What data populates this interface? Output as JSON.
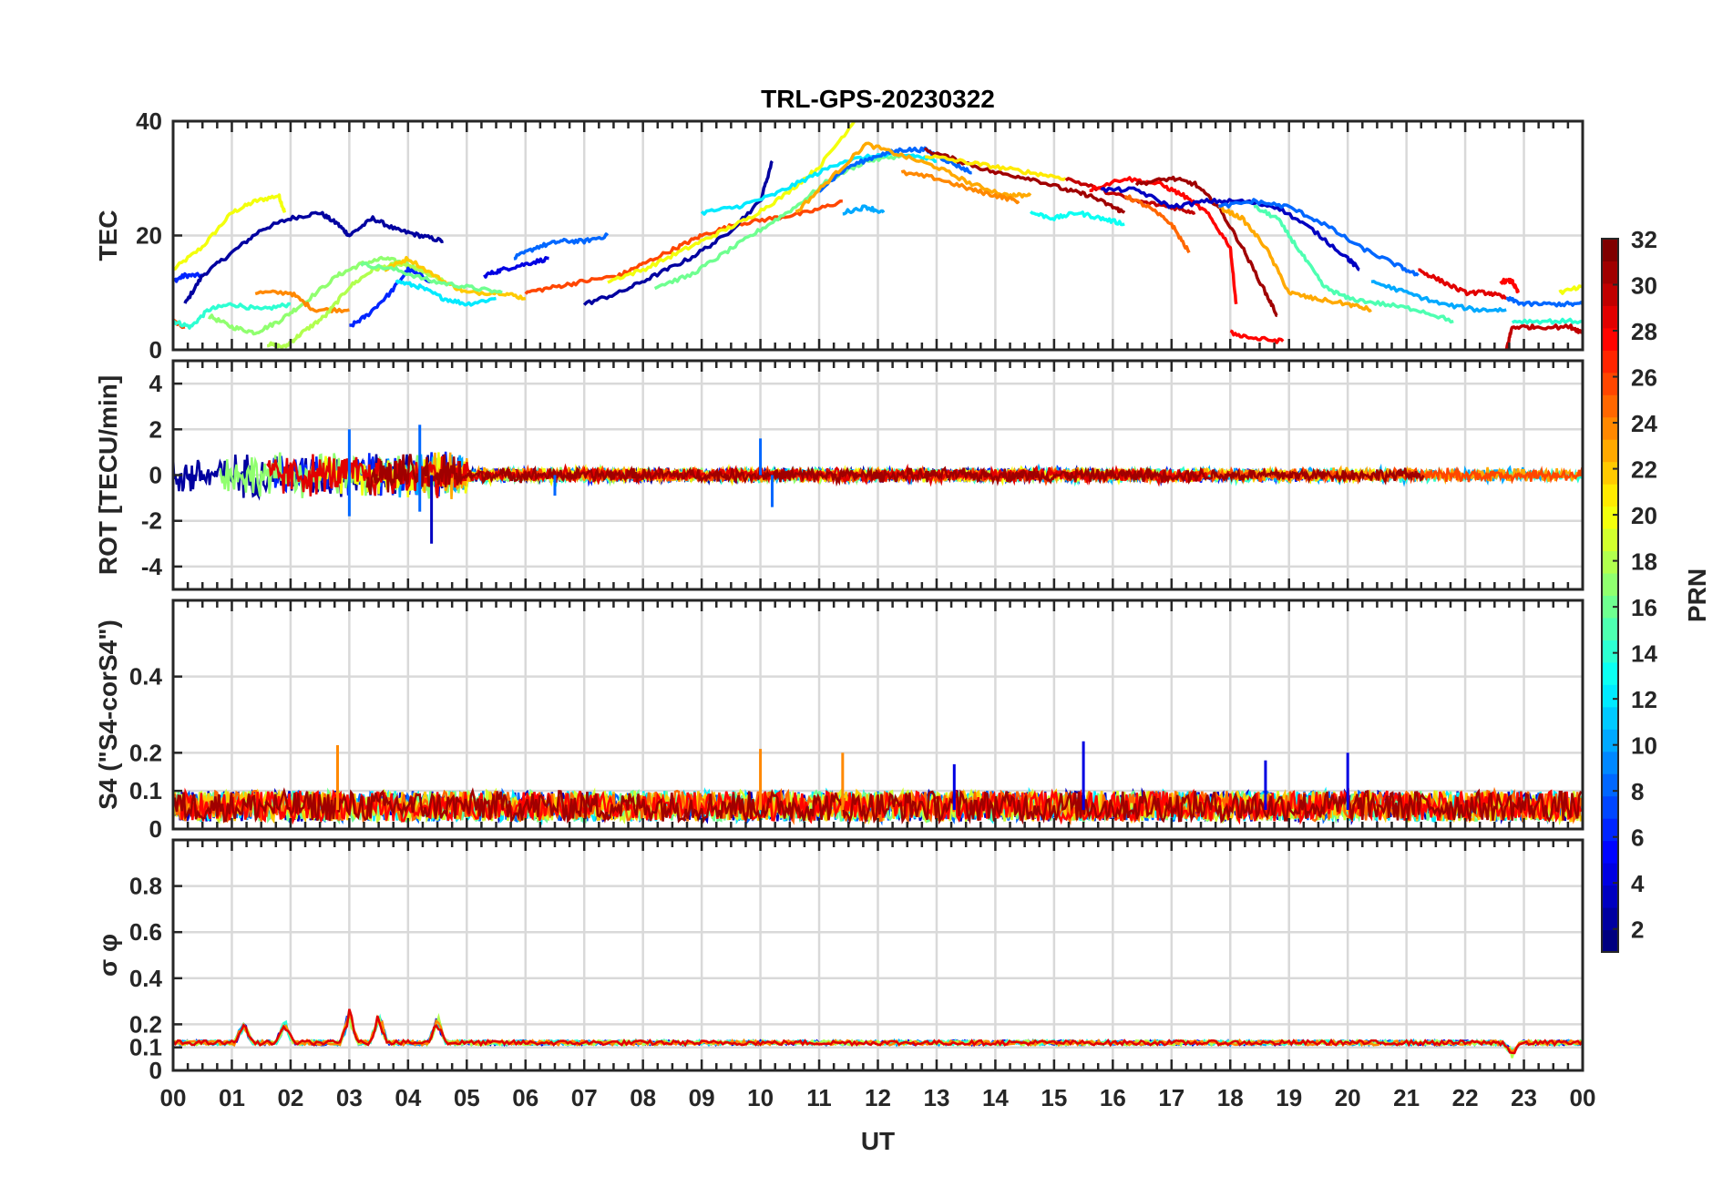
{
  "figure": {
    "title": "TRL-GPS-20230322",
    "xlabel": "UT",
    "x_tick_labels": [
      "00",
      "01",
      "02",
      "03",
      "04",
      "05",
      "06",
      "07",
      "08",
      "09",
      "10",
      "11",
      "12",
      "13",
      "14",
      "15",
      "16",
      "17",
      "18",
      "19",
      "20",
      "21",
      "22",
      "23",
      "00"
    ],
    "colorbar_label": "PRN",
    "colorbar_tick_labels": [
      "2",
      "4",
      "6",
      "8",
      "10",
      "12",
      "14",
      "16",
      "18",
      "20",
      "22",
      "24",
      "26",
      "28",
      "30",
      "32"
    ]
  },
  "chart_data": [
    {
      "type": "line",
      "panel": "TEC",
      "ylabel": "TEC",
      "ylim": [
        0,
        40
      ],
      "y_tick_labels": [
        "0",
        "20",
        "40"
      ],
      "x_unit": "UT hours",
      "grid": true,
      "series": [
        {
          "prn": 20,
          "x": [
            0.0,
            0.5,
            1.0,
            1.4,
            1.8,
            1.9
          ],
          "y": [
            14,
            18,
            24,
            26,
            27,
            24
          ]
        },
        {
          "prn": 6,
          "x": [
            0.0,
            0.2,
            0.5
          ],
          "y": [
            12,
            13,
            13
          ]
        },
        {
          "prn": 2,
          "x": [
            0.2,
            0.5,
            1.0,
            1.5,
            2.0,
            2.5,
            2.8
          ],
          "y": [
            8,
            13,
            17,
            21,
            23,
            24,
            22
          ]
        },
        {
          "prn": 2,
          "x": [
            2.8,
            3.0,
            3.4,
            3.8,
            4.2,
            4.6
          ],
          "y": [
            22,
            20,
            23,
            21,
            20,
            19
          ]
        },
        {
          "prn": 26,
          "x": [
            0.0,
            0.2
          ],
          "y": [
            5,
            4
          ]
        },
        {
          "prn": 14,
          "x": [
            0.0,
            0.3,
            0.6,
            1.0,
            1.5,
            2.0
          ],
          "y": [
            5,
            4,
            7,
            8,
            7,
            8
          ]
        },
        {
          "prn": 17,
          "x": [
            0.6,
            1.0,
            1.4,
            1.8,
            2.2,
            2.8,
            3.2,
            3.6,
            4.0,
            4.4
          ],
          "y": [
            6,
            4,
            3,
            5,
            8,
            13,
            15,
            16,
            15,
            13
          ]
        },
        {
          "prn": 24,
          "x": [
            1.4,
            2.0,
            2.4,
            3.0
          ],
          "y": [
            10,
            10,
            7,
            7
          ]
        },
        {
          "prn": 18,
          "x": [
            1.6,
            1.9,
            2.2,
            2.6,
            3.0,
            3.4,
            3.8,
            4.2,
            4.6
          ],
          "y": [
            1,
            0.5,
            3,
            6,
            11,
            14,
            15,
            14,
            12
          ]
        },
        {
          "prn": 6,
          "x": [
            3.0,
            3.3,
            3.7,
            4.0,
            4.4
          ],
          "y": [
            4,
            6,
            10,
            14,
            12
          ]
        },
        {
          "prn": 12,
          "x": [
            3.8,
            4.2,
            4.6,
            5.0,
            5.5
          ],
          "y": [
            12,
            11,
            9,
            8,
            9
          ]
        },
        {
          "prn": 22,
          "x": [
            3.6,
            4.0,
            4.6,
            5.0,
            5.6,
            6.0
          ],
          "y": [
            14,
            16,
            12,
            10,
            10,
            9
          ]
        },
        {
          "prn": 16,
          "x": [
            3.2,
            3.8,
            4.4,
            5.0,
            5.6
          ],
          "y": [
            15,
            14,
            12,
            11,
            10
          ]
        },
        {
          "prn": 4,
          "x": [
            5.3,
            5.6,
            6.0,
            6.4
          ],
          "y": [
            13,
            14,
            15,
            16
          ]
        },
        {
          "prn": 8,
          "x": [
            5.8,
            6.2,
            6.6,
            7.0,
            7.4
          ],
          "y": [
            16,
            18,
            19,
            19,
            20
          ]
        },
        {
          "prn": 26,
          "x": [
            6.0,
            6.5,
            7.0,
            7.6,
            8.0,
            8.6,
            9.0,
            9.6,
            10.2,
            10.8,
            11.4
          ],
          "y": [
            10,
            11,
            12,
            13,
            15,
            18,
            20,
            22,
            23,
            24,
            26
          ]
        },
        {
          "prn": 2,
          "x": [
            7.0,
            7.6,
            8.2,
            8.8,
            9.4,
            10.0,
            10.2
          ],
          "y": [
            8,
            10,
            13,
            16,
            20,
            26,
            33
          ]
        },
        {
          "prn": 20,
          "x": [
            7.4,
            8.0,
            8.6,
            9.2,
            9.8,
            10.4,
            11.0,
            11.6
          ],
          "y": [
            12,
            14,
            17,
            20,
            23,
            27,
            32,
            40
          ]
        },
        {
          "prn": 16,
          "x": [
            8.2,
            8.8,
            9.4,
            10.0,
            10.6,
            11.2,
            11.8,
            12.4
          ],
          "y": [
            11,
            13,
            17,
            21,
            25,
            30,
            33,
            34
          ]
        },
        {
          "prn": 12,
          "x": [
            9.0,
            9.6,
            10.2,
            10.8,
            11.4,
            12.0,
            12.6,
            13.0
          ],
          "y": [
            24,
            25,
            27,
            30,
            33,
            34,
            34,
            33
          ]
        },
        {
          "prn": 8,
          "x": [
            11.0,
            11.5,
            12.0,
            12.4,
            12.8,
            13.2,
            13.6
          ],
          "y": [
            28,
            32,
            34,
            35,
            35,
            33,
            31
          ]
        },
        {
          "prn": 23,
          "x": [
            10.6,
            11.2,
            11.8,
            12.4,
            13.0,
            13.6,
            14.2,
            14.6
          ],
          "y": [
            24,
            30,
            36,
            34,
            32,
            29,
            27,
            27
          ]
        },
        {
          "prn": 10,
          "x": [
            11.4,
            11.8,
            12.1
          ],
          "y": [
            24,
            25,
            24
          ]
        },
        {
          "prn": 24,
          "x": [
            12.4,
            13.0,
            13.6,
            14.0,
            14.4
          ],
          "y": [
            31,
            30,
            28,
            27,
            26
          ]
        },
        {
          "prn": 31,
          "x": [
            12.8,
            13.4,
            14.0,
            14.6,
            15.2,
            15.6,
            16.0,
            16.2
          ],
          "y": [
            35,
            33,
            31,
            30,
            28,
            27,
            25,
            24
          ]
        },
        {
          "prn": 21,
          "x": [
            12.8,
            13.4,
            14.0,
            14.6,
            15.2
          ],
          "y": [
            34,
            33,
            32,
            31,
            30
          ]
        },
        {
          "prn": 13,
          "x": [
            14.6,
            15.0,
            15.4,
            15.8,
            16.2
          ],
          "y": [
            24,
            23,
            24,
            23,
            22
          ]
        },
        {
          "prn": 30,
          "x": [
            15.2,
            15.8,
            16.4,
            17.0,
            17.4
          ],
          "y": [
            30,
            28,
            26,
            25,
            24
          ]
        },
        {
          "prn": 28,
          "x": [
            15.6,
            16.2,
            16.8,
            17.2,
            17.6,
            18.0,
            18.1
          ],
          "y": [
            28,
            30,
            29,
            27,
            24,
            18,
            8
          ]
        },
        {
          "prn": 31,
          "x": [
            16.4,
            17.0,
            17.4,
            17.8,
            18.2,
            18.6,
            18.8
          ],
          "y": [
            29,
            30,
            29,
            25,
            18,
            10,
            6
          ]
        },
        {
          "prn": 3,
          "x": [
            15.8,
            16.4,
            17.0,
            17.6,
            18.2,
            18.8,
            19.4,
            20.0,
            20.2
          ],
          "y": [
            28,
            28,
            25,
            26,
            26,
            25,
            21,
            16,
            14
          ]
        },
        {
          "prn": 25,
          "x": [
            16.2,
            16.6,
            17.0,
            17.3
          ],
          "y": [
            27,
            25,
            22,
            17
          ]
        },
        {
          "prn": 23,
          "x": [
            17.8,
            18.2,
            18.6,
            19.0,
            19.4,
            20.0,
            20.4
          ],
          "y": [
            25,
            23,
            18,
            10,
            9,
            8,
            7
          ]
        },
        {
          "prn": 15,
          "x": [
            18.4,
            18.8,
            19.2,
            19.6,
            20.0,
            20.6,
            21.2,
            21.8
          ],
          "y": [
            25,
            23,
            17,
            11,
            9,
            8,
            7,
            5
          ]
        },
        {
          "prn": 8,
          "x": [
            17.8,
            18.4,
            19.0,
            19.6,
            20.2,
            20.8,
            21.2
          ],
          "y": [
            25,
            26,
            25,
            22,
            18,
            15,
            13
          ]
        },
        {
          "prn": 28,
          "x": [
            18.0,
            18.4,
            18.9
          ],
          "y": [
            3,
            2,
            1.5
          ]
        },
        {
          "prn": 10,
          "x": [
            20.4,
            21.0,
            21.6,
            22.2,
            22.7
          ],
          "y": [
            12,
            10,
            8,
            7,
            7
          ]
        },
        {
          "prn": 29,
          "x": [
            21.2,
            21.6,
            22.0,
            22.4,
            22.7
          ],
          "y": [
            14,
            12,
            10,
            10,
            9
          ]
        },
        {
          "prn": 28,
          "x": [
            22.6,
            22.8,
            22.9
          ],
          "y": [
            12,
            12,
            10
          ]
        },
        {
          "prn": 8,
          "x": [
            22.7,
            23.0,
            23.6,
            24.0
          ],
          "y": [
            9,
            8,
            8,
            8
          ]
        },
        {
          "prn": 30,
          "x": [
            22.7,
            22.8,
            23.2,
            23.8,
            24.0
          ],
          "y": [
            0,
            4,
            4,
            4,
            3
          ]
        },
        {
          "prn": 14,
          "x": [
            22.8,
            23.4,
            24.0
          ],
          "y": [
            5,
            5,
            5
          ]
        },
        {
          "prn": 20,
          "x": [
            23.6,
            24.0
          ],
          "y": [
            10,
            11
          ]
        }
      ]
    },
    {
      "type": "line",
      "panel": "ROT",
      "ylabel": "ROT [TECU/min]",
      "ylim": [
        -5,
        5
      ],
      "y_tick_labels": [
        "-4",
        "-2",
        "0",
        "2",
        "4"
      ],
      "x_unit": "UT hours",
      "grid": true,
      "noise_envelope": [
        {
          "x_range": [
            0,
            5
          ],
          "amplitude": 0.8,
          "spikes": [
            [
              3.0,
              -1.8
            ],
            [
              3.0,
              2.0
            ],
            [
              4.2,
              2.2
            ],
            [
              4.4,
              -3.0
            ],
            [
              4.2,
              -1.6
            ]
          ]
        },
        {
          "x_range": [
            5,
            24
          ],
          "amplitude": 0.25,
          "spikes": [
            [
              10.0,
              1.6
            ],
            [
              10.2,
              -1.4
            ],
            [
              6.5,
              -0.9
            ]
          ]
        }
      ]
    },
    {
      "type": "line",
      "panel": "S4",
      "ylabel": "S4 (\"S4-corS4\")",
      "ylim": [
        0,
        0.6
      ],
      "y_tick_labels": [
        "0",
        "0.1",
        "0.2",
        "0.4"
      ],
      "x_unit": "UT hours",
      "grid": true,
      "typical_level": [
        0.02,
        0.1
      ],
      "peaks": [
        [
          2.8,
          0.22
        ],
        [
          10.0,
          0.21
        ],
        [
          11.4,
          0.2
        ],
        [
          13.3,
          0.17
        ],
        [
          15.5,
          0.23
        ],
        [
          18.6,
          0.18
        ],
        [
          20.0,
          0.2
        ]
      ]
    },
    {
      "type": "line",
      "panel": "sigma_phi",
      "ylabel": "σ φ",
      "ylim": [
        0,
        1
      ],
      "y_tick_labels": [
        "0",
        "0.1",
        "0.2",
        "0.4",
        "0.6",
        "0.8"
      ],
      "x_unit": "UT hours",
      "grid": true,
      "baseline": 0.12,
      "bumps": [
        [
          1.2,
          0.22
        ],
        [
          1.9,
          0.22
        ],
        [
          3.0,
          0.27
        ],
        [
          3.5,
          0.26
        ],
        [
          4.5,
          0.24
        ],
        [
          22.8,
          0.06
        ]
      ]
    }
  ]
}
